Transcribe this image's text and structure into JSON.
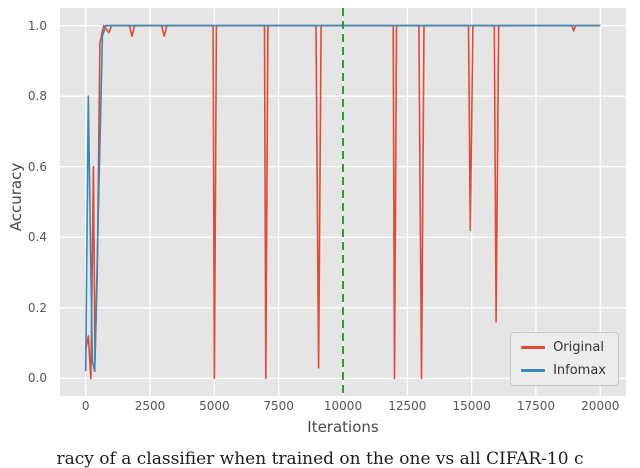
{
  "figure": {
    "xlabel": "Iterations",
    "ylabel": "Accuracy",
    "caption_fragment": "racy of a classifier when trained on the one vs all CIFAR-10 c"
  },
  "chart_data": {
    "type": "line",
    "title": "",
    "xlabel": "Iterations",
    "ylabel": "Accuracy",
    "xlim": [
      -1000,
      21000
    ],
    "ylim": [
      -0.05,
      1.05
    ],
    "xticks": [
      0,
      2500,
      5000,
      7500,
      10000,
      12500,
      15000,
      17500,
      20000
    ],
    "xtick_labels": [
      "0",
      "2500",
      "5000",
      "7500",
      "10000",
      "12500",
      "15000",
      "17500",
      "20000"
    ],
    "yticks": [
      0.0,
      0.2,
      0.4,
      0.6,
      0.8,
      1.0
    ],
    "ytick_labels": [
      "0.0",
      "0.2",
      "0.4",
      "0.6",
      "0.8",
      "1.0"
    ],
    "grid": true,
    "grid_color": "#ffffff",
    "plot_background": "#e5e5e5",
    "legend_position": "lower right",
    "vline": {
      "x": 10000,
      "color": "#2ca02c",
      "style": "dashed",
      "width": 2
    },
    "series": [
      {
        "name": "Original",
        "color": "#e24a33",
        "points": [
          [
            0,
            0.08
          ],
          [
            100,
            0.12
          ],
          [
            200,
            0.0
          ],
          [
            300,
            0.6
          ],
          [
            360,
            0.05
          ],
          [
            450,
            0.3
          ],
          [
            550,
            0.95
          ],
          [
            700,
            1.0
          ],
          [
            900,
            0.98
          ],
          [
            1000,
            1.0
          ],
          [
            1700,
            1.0
          ],
          [
            1800,
            0.97
          ],
          [
            1900,
            1.0
          ],
          [
            2950,
            1.0
          ],
          [
            3050,
            0.97
          ],
          [
            3150,
            1.0
          ],
          [
            4950,
            1.0
          ],
          [
            5000,
            0.0
          ],
          [
            5080,
            1.0
          ],
          [
            6950,
            1.0
          ],
          [
            7000,
            0.0
          ],
          [
            7080,
            1.0
          ],
          [
            8950,
            1.0
          ],
          [
            9050,
            0.03
          ],
          [
            9150,
            1.0
          ],
          [
            11950,
            1.0
          ],
          [
            12000,
            0.0
          ],
          [
            12080,
            1.0
          ],
          [
            12950,
            1.0
          ],
          [
            13050,
            0.0
          ],
          [
            13150,
            1.0
          ],
          [
            14880,
            1.0
          ],
          [
            14950,
            0.42
          ],
          [
            15050,
            1.0
          ],
          [
            15880,
            1.0
          ],
          [
            15950,
            0.16
          ],
          [
            16050,
            1.0
          ],
          [
            18900,
            1.0
          ],
          [
            18960,
            0.985
          ],
          [
            19050,
            1.0
          ],
          [
            20000,
            1.0
          ]
        ]
      },
      {
        "name": "Infomax",
        "color": "#348abd",
        "points": [
          [
            0,
            0.02
          ],
          [
            100,
            0.8
          ],
          [
            200,
            0.3
          ],
          [
            260,
            0.05
          ],
          [
            350,
            0.02
          ],
          [
            500,
            0.5
          ],
          [
            650,
            0.97
          ],
          [
            780,
            1.0
          ],
          [
            20000,
            1.0
          ]
        ]
      }
    ]
  }
}
